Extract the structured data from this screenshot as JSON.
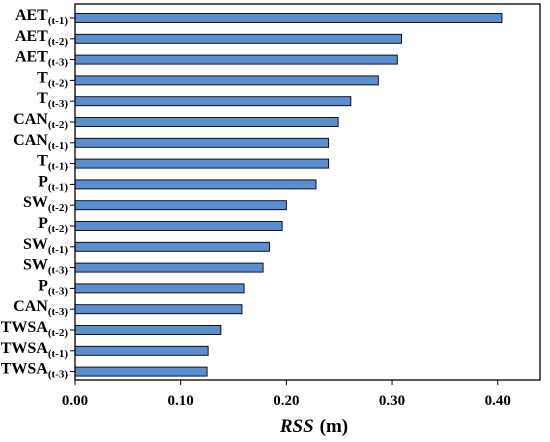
{
  "chart_data": {
    "type": "bar",
    "orientation": "horizontal",
    "categories": [
      {
        "base": "AET",
        "sub": "(t-1)"
      },
      {
        "base": "AET",
        "sub": "(t-2)"
      },
      {
        "base": "AET",
        "sub": "(t-3)"
      },
      {
        "base": "T",
        "sub": "(t-2)"
      },
      {
        "base": "T",
        "sub": "(t-3)"
      },
      {
        "base": "CAN",
        "sub": "(t-2)"
      },
      {
        "base": "CAN",
        "sub": "(t-1)"
      },
      {
        "base": "T",
        "sub": "(t-1)"
      },
      {
        "base": "P",
        "sub": "(t-1)"
      },
      {
        "base": "SW",
        "sub": "(t-2)"
      },
      {
        "base": "P",
        "sub": "(t-2)"
      },
      {
        "base": "SW",
        "sub": "(t-1)"
      },
      {
        "base": "SW",
        "sub": "(t-3)"
      },
      {
        "base": "P",
        "sub": "(t-3)"
      },
      {
        "base": "CAN",
        "sub": "(t-3)"
      },
      {
        "base": "TWSA",
        "sub": "(t-2)"
      },
      {
        "base": "TWSA",
        "sub": "(t-1)"
      },
      {
        "base": "TWSA",
        "sub": "(t-3)"
      }
    ],
    "values": [
      0.404,
      0.309,
      0.305,
      0.287,
      0.261,
      0.249,
      0.24,
      0.24,
      0.228,
      0.2,
      0.196,
      0.184,
      0.178,
      0.16,
      0.158,
      0.138,
      0.126,
      0.125
    ],
    "xlabel_italic": "RSS",
    "xlabel_unit": "(m)",
    "ylabel": "",
    "title": "",
    "xlim": [
      0,
      0.44
    ],
    "xticks": [
      0.0,
      0.1,
      0.2,
      0.3,
      0.4
    ],
    "xtick_labels": [
      "0.00",
      "0.10",
      "0.20",
      "0.30",
      "0.40"
    ],
    "grid": false,
    "legend": "none",
    "bar_color": "#5b8ed0",
    "bar_edge_color": "#000000"
  }
}
